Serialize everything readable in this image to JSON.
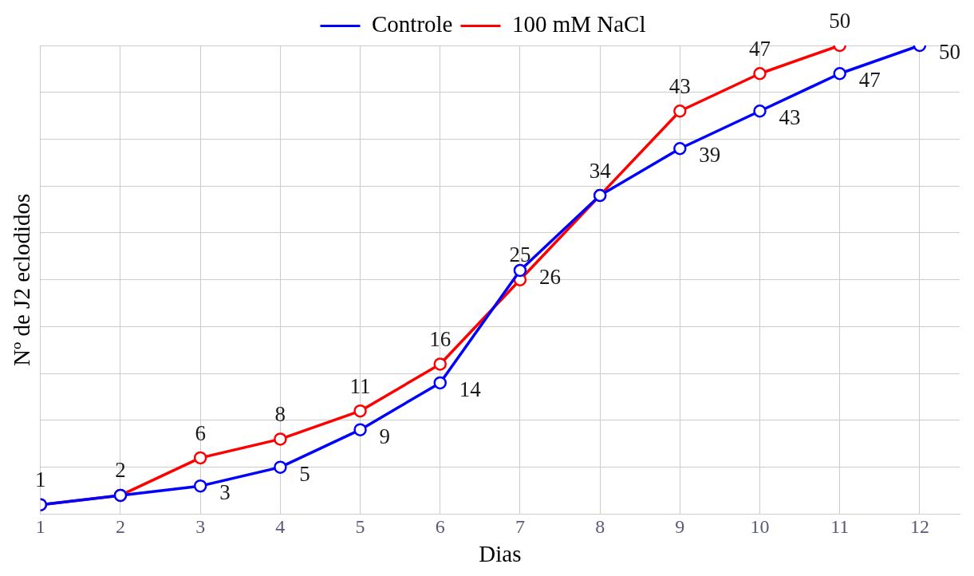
{
  "chart_data": {
    "type": "line",
    "xlabel": "Dias",
    "ylabel": "Nº de J2 eclodidos",
    "x": [
      1,
      2,
      3,
      4,
      5,
      6,
      7,
      8,
      9,
      10,
      11,
      12
    ],
    "xlim": [
      1,
      12.5
    ],
    "xticks": [
      1,
      2,
      3,
      4,
      5,
      6,
      7,
      8,
      9,
      10,
      11,
      12
    ],
    "ylim": [
      0,
      50
    ],
    "yticks": [
      {
        "value": 0,
        "label": null
      },
      {
        "value": 5,
        "label": null
      },
      {
        "value": 10,
        "label": null
      },
      {
        "value": 15,
        "label": null
      },
      {
        "value": 20,
        "label": null
      },
      {
        "value": 25,
        "label": null
      },
      {
        "value": 30,
        "label": null
      },
      {
        "value": 35,
        "label": null
      },
      {
        "value": 40,
        "label": null
      },
      {
        "value": 45,
        "label": null
      },
      {
        "value": 50,
        "label": null
      }
    ],
    "tick_labels": "x",
    "grid": true,
    "legend": "top",
    "marker": "circle",
    "line_style": "solid",
    "series": [
      {
        "name": "Controle",
        "color": "#0000ff",
        "values": [
          1,
          2,
          3,
          5,
          9,
          14,
          26,
          34,
          39,
          43,
          47,
          50
        ],
        "value_labels": [
          null,
          null,
          "3",
          "5",
          "9",
          "14",
          "26",
          null,
          "39",
          "43",
          "47",
          "50"
        ]
      },
      {
        "name": "100 mM NaCl",
        "color": "#ff0000",
        "values": [
          1,
          2,
          6,
          8,
          11,
          16,
          25,
          34,
          43,
          47,
          50,
          null
        ],
        "value_labels": [
          "1",
          "2",
          "6",
          "8",
          "11",
          "16",
          "25",
          "34",
          "43",
          "47",
          "50",
          null
        ]
      }
    ]
  }
}
